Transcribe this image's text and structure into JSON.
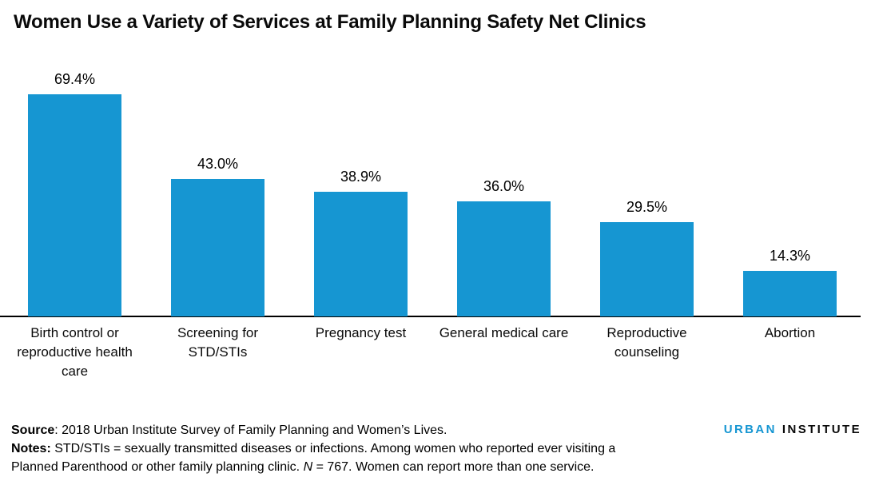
{
  "title": "Women Use a Variety of Services at Family Planning Safety Net Clinics",
  "chart_data": {
    "type": "bar",
    "title": "Women Use a Variety of Services at Family Planning Safety Net Clinics",
    "categories": [
      "Birth control or reproductive health care",
      "Screening for STD/STIs",
      "Pregnancy test",
      "General medical care",
      "Reproductive counseling",
      "Abortion"
    ],
    "category_lines": [
      [
        "Birth control or",
        "reproductive health",
        "care"
      ],
      [
        "Screening for",
        "STD/STIs"
      ],
      [
        "Pregnancy test"
      ],
      [
        "General medical care"
      ],
      [
        "Reproductive",
        "counseling"
      ],
      [
        "Abortion"
      ]
    ],
    "values": [
      69.4,
      43.0,
      38.9,
      36.0,
      29.5,
      14.3
    ],
    "value_labels": [
      "69.4%",
      "43.0%",
      "38.9%",
      "36.0%",
      "29.5%",
      "14.3%"
    ],
    "unit": "%",
    "xlabel": "",
    "ylabel": "",
    "ylim": [
      0,
      75
    ],
    "grid": false,
    "legend": false,
    "data_labels": true,
    "bar_color": "#1696d2",
    "axis_color": "#000000"
  },
  "footer": {
    "source_label": "Source",
    "source_text": ": 2018 Urban Institute Survey of Family Planning and Women’s Lives.",
    "notes_label": "Notes:",
    "notes_text_1": " STD/STIs = sexually transmitted diseases or infections. Among women who reported ever visiting a Planned Parenthood or other family planning clinic. ",
    "n_symbol": "N",
    "notes_text_2": " = 767. Women can report more than one service."
  },
  "logo": {
    "urban": "URBAN",
    "institute": "INSTITUTE",
    "urban_color": "#1696d2",
    "institute_color": "#0a0a0a"
  }
}
